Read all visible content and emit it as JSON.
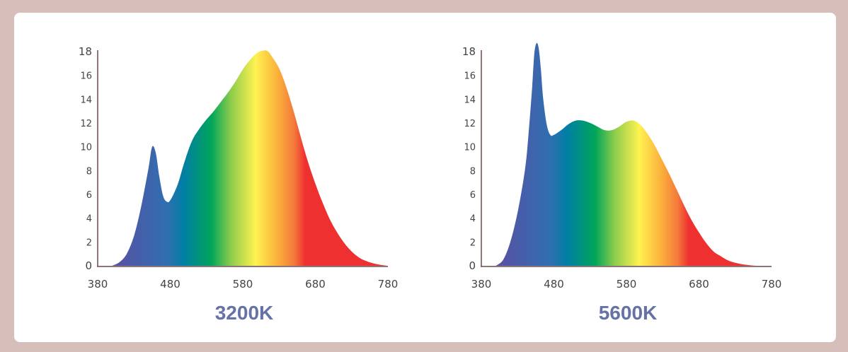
{
  "colors": {
    "background": "#d6bfba",
    "panel": "#ffffff",
    "axis": "#6b4a48",
    "title": "#6472a6",
    "gradient": [
      "#5b4fa3",
      "#2f6fb0",
      "#007fa4",
      "#00a55a",
      "#8ccc4c",
      "#fff250",
      "#fbb03b",
      "#f4793b",
      "#ee3030",
      "#ee3030"
    ]
  },
  "chart_data": [
    {
      "type": "area",
      "title": "3200K",
      "xlabel": "",
      "ylabel": "",
      "xlim": [
        380,
        780
      ],
      "ylim": [
        0,
        18
      ],
      "x_ticks": [
        "380",
        "480",
        "580",
        "680",
        "780"
      ],
      "y_ticks": [
        "0",
        "2",
        "4",
        "6",
        "8",
        "10",
        "12",
        "14",
        "16",
        "18"
      ],
      "grid": false,
      "x": [
        400,
        410,
        420,
        430,
        440,
        450,
        455,
        460,
        465,
        470,
        475,
        480,
        490,
        500,
        510,
        520,
        530,
        540,
        550,
        560,
        570,
        580,
        590,
        600,
        610,
        615,
        620,
        630,
        640,
        650,
        660,
        670,
        680,
        690,
        700,
        710,
        720,
        730,
        740,
        750,
        760,
        770,
        780
      ],
      "y": [
        0,
        0.3,
        1.0,
        2.5,
        5.0,
        8.2,
        10.0,
        9.5,
        7.5,
        5.9,
        5.4,
        5.5,
        6.8,
        8.8,
        10.5,
        11.5,
        12.3,
        13.0,
        13.8,
        14.6,
        15.5,
        16.5,
        17.3,
        17.9,
        18.1,
        18.0,
        17.6,
        16.6,
        15.0,
        13.0,
        10.8,
        8.7,
        6.9,
        5.3,
        3.9,
        2.8,
        1.9,
        1.2,
        0.7,
        0.4,
        0.2,
        0.08,
        0
      ]
    },
    {
      "type": "area",
      "title": "5600K",
      "xlabel": "",
      "ylabel": "",
      "xlim": [
        380,
        780
      ],
      "ylim": [
        0,
        18
      ],
      "x_ticks": [
        "380",
        "480",
        "580",
        "680",
        "780"
      ],
      "y_ticks": [
        "0",
        "2",
        "4",
        "6",
        "8",
        "10",
        "12",
        "14",
        "16",
        "18"
      ],
      "grid": false,
      "x": [
        400,
        410,
        420,
        430,
        440,
        445,
        450,
        453,
        456,
        459,
        462,
        465,
        470,
        475,
        480,
        490,
        500,
        510,
        520,
        530,
        540,
        550,
        560,
        570,
        580,
        590,
        600,
        610,
        620,
        630,
        640,
        650,
        660,
        670,
        680,
        690,
        700,
        710,
        720,
        730,
        740,
        750,
        760,
        770,
        780
      ],
      "y": [
        0,
        0.5,
        2.0,
        4.5,
        8.0,
        11.0,
        15.0,
        17.8,
        18.7,
        18.3,
        16.6,
        14.2,
        11.9,
        11.0,
        11.0,
        11.4,
        11.9,
        12.2,
        12.2,
        12.0,
        11.7,
        11.4,
        11.4,
        11.7,
        12.1,
        12.2,
        11.8,
        11.0,
        10.0,
        8.8,
        7.6,
        6.3,
        5.0,
        3.8,
        2.8,
        1.9,
        1.2,
        0.8,
        0.45,
        0.25,
        0.12,
        0.05,
        0,
        0,
        0
      ]
    }
  ]
}
